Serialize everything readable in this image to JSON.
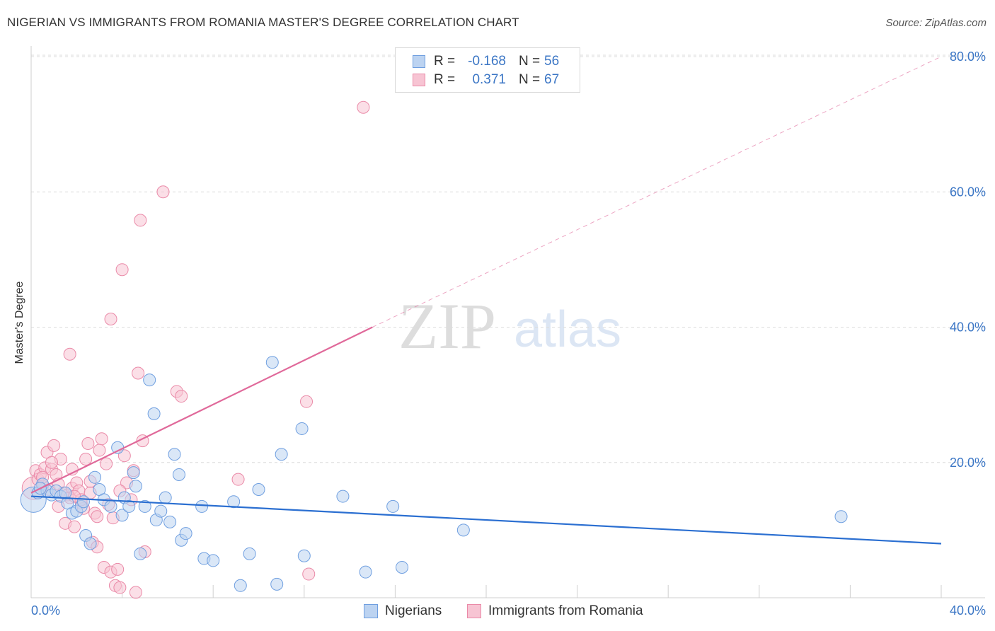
{
  "title": "NIGERIAN VS IMMIGRANTS FROM ROMANIA MASTER'S DEGREE CORRELATION CHART",
  "source": "Source: ZipAtlas.com",
  "watermark": {
    "zip": "ZIP",
    "atlas": "atlas"
  },
  "legend_top": {
    "rows": [
      {
        "r_label": "R =",
        "r_value": "-0.168",
        "n_label": "N =",
        "n_value": "56"
      },
      {
        "r_label": "R =",
        "r_value": "0.371",
        "n_label": "N =",
        "n_value": "67"
      }
    ]
  },
  "legend_bottom": {
    "items": [
      {
        "label": "Nigerians"
      },
      {
        "label": "Immigrants from Romania"
      }
    ]
  },
  "colors": {
    "blue_fill": "#bcd3f1",
    "blue_stroke": "#6f9fe0",
    "blue_line": "#2b6fd1",
    "pink_fill": "#f7c4d3",
    "pink_stroke": "#ea8aa8",
    "pink_line": "#e0699a",
    "axis_text": "#3b76c5",
    "grid": "#dcdcdc"
  },
  "chart_data": {
    "type": "scatter",
    "xlabel": "",
    "ylabel": "Master's Degree",
    "xlim": [
      0,
      40
    ],
    "ylim": [
      0,
      80
    ],
    "x_tick_labels": [
      "0.0%",
      "40.0%"
    ],
    "y_ticks": [
      20,
      40,
      60,
      80
    ],
    "y_tick_labels": [
      "20.0%",
      "40.0%",
      "60.0%",
      "80.0%"
    ],
    "grid": true,
    "series": [
      {
        "name": "Nigerians",
        "R": -0.168,
        "N": 56,
        "trend": {
          "x": [
            0,
            40
          ],
          "y": [
            15.0,
            8.0
          ],
          "dashed_extension": false
        },
        "points": [
          [
            0.1,
            14.5,
            30
          ],
          [
            0.3,
            15.5,
            10
          ],
          [
            0.5,
            16.8,
            10
          ],
          [
            0.7,
            15.8,
            10
          ],
          [
            0.9,
            15.2,
            10
          ],
          [
            1.1,
            15.8,
            10
          ],
          [
            1.3,
            15.0,
            10
          ],
          [
            1.5,
            15.5,
            10
          ],
          [
            1.8,
            12.5,
            10
          ],
          [
            2.0,
            12.8,
            10
          ],
          [
            2.2,
            13.5,
            10
          ],
          [
            2.3,
            14.2,
            10
          ],
          [
            2.4,
            9.2,
            10
          ],
          [
            2.6,
            8.0,
            10
          ],
          [
            2.8,
            17.8,
            10
          ],
          [
            3.0,
            16.0,
            10
          ],
          [
            3.2,
            14.5,
            10
          ],
          [
            3.5,
            13.5,
            10
          ],
          [
            3.8,
            22.2,
            10
          ],
          [
            4.0,
            12.2,
            10
          ],
          [
            4.1,
            14.8,
            10
          ],
          [
            4.3,
            13.5,
            10
          ],
          [
            4.5,
            18.5,
            10
          ],
          [
            4.6,
            16.5,
            10
          ],
          [
            4.8,
            6.5,
            10
          ],
          [
            5.0,
            13.5,
            10
          ],
          [
            5.2,
            32.2,
            10
          ],
          [
            5.4,
            27.2,
            10
          ],
          [
            5.5,
            11.5,
            10
          ],
          [
            5.7,
            12.8,
            10
          ],
          [
            5.9,
            14.8,
            10
          ],
          [
            6.1,
            11.2,
            10
          ],
          [
            6.3,
            21.2,
            10
          ],
          [
            6.5,
            18.2,
            10
          ],
          [
            6.6,
            8.5,
            10
          ],
          [
            6.8,
            9.5,
            10
          ],
          [
            7.5,
            13.5,
            10
          ],
          [
            7.6,
            5.8,
            10
          ],
          [
            8.0,
            5.5,
            10
          ],
          [
            8.9,
            14.2,
            10
          ],
          [
            9.2,
            1.8,
            10
          ],
          [
            9.6,
            6.5,
            10
          ],
          [
            10.0,
            16.0,
            10
          ],
          [
            10.6,
            34.8,
            10
          ],
          [
            10.8,
            2.0,
            10
          ],
          [
            11.0,
            21.2,
            10
          ],
          [
            11.9,
            25.0,
            10
          ],
          [
            12.0,
            6.2,
            10
          ],
          [
            13.7,
            15.0,
            10
          ],
          [
            14.7,
            3.8,
            10
          ],
          [
            15.9,
            13.5,
            10
          ],
          [
            16.3,
            4.5,
            10
          ],
          [
            19.0,
            10.0,
            10
          ],
          [
            35.6,
            12.0,
            10
          ],
          [
            0.4,
            16.2,
            10
          ],
          [
            1.6,
            14.0,
            10
          ]
        ]
      },
      {
        "name": "Immigrants from Romania",
        "R": 0.371,
        "N": 67,
        "trend": {
          "x": [
            0,
            15
          ],
          "y": [
            15.5,
            40.0
          ],
          "dashed_to": [
            40,
            80.0
          ]
        },
        "points": [
          [
            0.1,
            16.2,
            20
          ],
          [
            0.2,
            18.8,
            10
          ],
          [
            0.3,
            17.5,
            10
          ],
          [
            0.4,
            18.2,
            10
          ],
          [
            0.5,
            16.5,
            10
          ],
          [
            0.6,
            19.2,
            10
          ],
          [
            0.7,
            21.5,
            10
          ],
          [
            0.8,
            16.0,
            10
          ],
          [
            0.9,
            19.0,
            10
          ],
          [
            1.0,
            22.5,
            10
          ],
          [
            1.1,
            18.2,
            10
          ],
          [
            1.2,
            13.5,
            10
          ],
          [
            1.3,
            20.5,
            10
          ],
          [
            1.4,
            15.5,
            10
          ],
          [
            1.5,
            11.0,
            10
          ],
          [
            1.6,
            15.2,
            10
          ],
          [
            1.7,
            14.8,
            10
          ],
          [
            1.8,
            16.2,
            10
          ],
          [
            1.9,
            10.5,
            10
          ],
          [
            1.7,
            36.0,
            10
          ],
          [
            1.8,
            19.0,
            10
          ],
          [
            2.0,
            17.0,
            10
          ],
          [
            2.1,
            15.8,
            10
          ],
          [
            2.2,
            14.0,
            10
          ],
          [
            2.3,
            13.2,
            10
          ],
          [
            2.4,
            20.5,
            10
          ],
          [
            2.5,
            22.8,
            10
          ],
          [
            2.6,
            15.5,
            10
          ],
          [
            2.7,
            8.2,
            10
          ],
          [
            2.8,
            12.5,
            10
          ],
          [
            2.9,
            7.5,
            10
          ],
          [
            3.0,
            21.8,
            10
          ],
          [
            3.1,
            23.5,
            10
          ],
          [
            3.2,
            4.5,
            10
          ],
          [
            3.3,
            19.8,
            10
          ],
          [
            3.5,
            3.8,
            10
          ],
          [
            3.5,
            41.2,
            10
          ],
          [
            3.6,
            11.8,
            10
          ],
          [
            3.7,
            1.8,
            10
          ],
          [
            3.8,
            4.2,
            10
          ],
          [
            3.9,
            1.5,
            10
          ],
          [
            4.0,
            48.5,
            10
          ],
          [
            4.1,
            21.0,
            10
          ],
          [
            4.2,
            17.0,
            10
          ],
          [
            4.4,
            14.5,
            10
          ],
          [
            4.5,
            18.8,
            10
          ],
          [
            4.6,
            0.8,
            10
          ],
          [
            4.7,
            33.2,
            10
          ],
          [
            4.8,
            55.8,
            10
          ],
          [
            4.9,
            23.2,
            10
          ],
          [
            5.0,
            6.8,
            10
          ],
          [
            5.8,
            60.0,
            10
          ],
          [
            6.4,
            30.5,
            10
          ],
          [
            6.6,
            29.8,
            10
          ],
          [
            9.1,
            17.5,
            10
          ],
          [
            12.1,
            29.0,
            10
          ],
          [
            12.2,
            3.5,
            10
          ],
          [
            14.6,
            72.5,
            10
          ],
          [
            0.5,
            17.8,
            10
          ],
          [
            1.2,
            16.8,
            10
          ],
          [
            2.2,
            14.5,
            10
          ],
          [
            2.9,
            12.0,
            10
          ],
          [
            3.4,
            13.8,
            10
          ],
          [
            0.9,
            20.0,
            10
          ],
          [
            1.9,
            15.0,
            10
          ],
          [
            2.6,
            17.2,
            10
          ],
          [
            3.9,
            15.8,
            10
          ]
        ]
      }
    ]
  }
}
